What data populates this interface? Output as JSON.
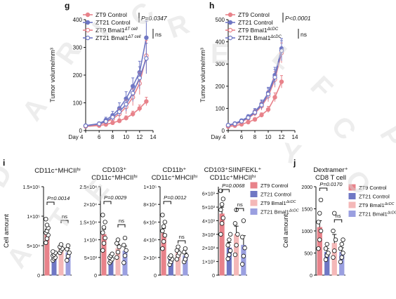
{
  "watermark": "CREATIVE COMMONS WATERMARK",
  "watermark_letters": [
    "D",
    "A",
    "R",
    "I",
    "C",
    "R",
    "A",
    "T",
    "E",
    "L",
    "F",
    "C",
    "O",
    "P",
    "Y",
    "E"
  ],
  "colors": {
    "zt9_control": "#e8828a",
    "zt21_control": "#6f77c4",
    "zt9_ko": "#f4b8b8",
    "zt21_ko": "#9a9fe0",
    "text": "#111111"
  },
  "panels": {
    "g": {
      "letter": "g",
      "ylabel": "Tumor volume/mm³",
      "xlabel_prefix": "Day",
      "legend": [
        {
          "label": "ZT9 Control",
          "color": "#e8828a",
          "fill": true
        },
        {
          "label": "ZT21 Control",
          "color": "#6f77c4",
          "fill": true
        },
        {
          "label": "ZT9 Bmal1",
          "sup": "ΔT cell",
          "color": "#e8828a",
          "fill": false
        },
        {
          "label": "ZT21 Bmal1",
          "sup": "ΔT cell",
          "color": "#6f77c4",
          "fill": false
        }
      ],
      "pvalue": "P=0.0347",
      "ns": "ns"
    },
    "h": {
      "letter": "h",
      "ylabel": "Tumor volume/mm³",
      "xlabel_prefix": "Day",
      "legend": [
        {
          "label": "ZT9 Control",
          "color": "#e8828a",
          "fill": true
        },
        {
          "label": "ZT21 Control",
          "color": "#6f77c4",
          "fill": true
        },
        {
          "label": "ZT9  Bmal1",
          "sup": "ΔcDC",
          "color": "#e8828a",
          "fill": false
        },
        {
          "label": "ZT21 Bmal1",
          "sup": "ΔcDC",
          "color": "#6f77c4",
          "fill": false
        }
      ],
      "pvalue": "P<0.0001",
      "ns": "ns"
    },
    "i": {
      "letter": "i",
      "ylabel": "Cell amount"
    },
    "j": {
      "letter": "j",
      "ylabel": "Cell amount"
    }
  },
  "bar_legend_i": [
    {
      "label": "ZT9  Control",
      "color": "#e8828a"
    },
    {
      "label": "ZT21 Control",
      "color": "#6f77c4"
    },
    {
      "label": "ZT9  Bmal1",
      "sup": "ΔcDC",
      "color": "#f4b8b8"
    },
    {
      "label": "ZT21 Bmal1",
      "sup": "ΔcDC",
      "color": "#9a9fe0"
    }
  ],
  "bar_legend_j": [
    {
      "label": "ZT9  Control",
      "color": "#e8828a"
    },
    {
      "label": "ZT21 Control",
      "color": "#6f77c4"
    },
    {
      "label": "ZT9  Bmal1",
      "sup": "ΔcDC",
      "color": "#f4b8b8"
    },
    {
      "label": "ZT21 Bmal1",
      "sup": "ΔcDC",
      "color": "#9a9fe0"
    }
  ],
  "chart_data": [
    {
      "type": "line",
      "panel": "g",
      "x": [
        4,
        6,
        8,
        10,
        12,
        14
      ],
      "xlim": [
        4,
        14
      ],
      "ylim": [
        0,
        400
      ],
      "yticks": [
        0,
        100,
        200,
        300,
        400
      ],
      "ylabel": "Tumor volume/mm³",
      "xlabel": "Day",
      "series": [
        {
          "name": "ZT9 Control",
          "x": [
            4,
            6,
            7,
            8,
            9,
            10,
            11,
            12,
            13
          ],
          "values": [
            15,
            18,
            22,
            28,
            35,
            45,
            60,
            80,
            105
          ],
          "err": [
            3,
            4,
            5,
            6,
            7,
            8,
            10,
            12,
            15
          ]
        },
        {
          "name": "ZT21 Control",
          "x": [
            4,
            6,
            7,
            8,
            9,
            10,
            11,
            12,
            13
          ],
          "values": [
            18,
            25,
            38,
            55,
            80,
            115,
            160,
            210,
            335
          ],
          "err": [
            4,
            6,
            10,
            14,
            20,
            25,
            30,
            40,
            60
          ]
        },
        {
          "name": "ZT9 Bmal1ΔT cell",
          "x": [
            4,
            6,
            7,
            8,
            9,
            10,
            11,
            12,
            13
          ],
          "values": [
            16,
            22,
            30,
            42,
            60,
            85,
            120,
            170,
            270
          ],
          "err": [
            3,
            5,
            8,
            12,
            18,
            25,
            30,
            40,
            55
          ]
        },
        {
          "name": "ZT21 Bmal1ΔT cell",
          "x": [
            4,
            6,
            7,
            8,
            9,
            10,
            11,
            12,
            13
          ],
          "values": [
            17,
            24,
            33,
            48,
            68,
            95,
            135,
            190,
            260
          ],
          "err": [
            3,
            5,
            8,
            12,
            18,
            25,
            30,
            40,
            55
          ]
        }
      ]
    },
    {
      "type": "line",
      "panel": "h",
      "x": [
        4,
        6,
        8,
        10,
        12,
        14
      ],
      "xlim": [
        4,
        14
      ],
      "ylim": [
        0,
        500
      ],
      "yticks": [
        0,
        100,
        200,
        300,
        400,
        500
      ],
      "ylabel": "Tumor volume/mm³",
      "xlabel": "Day",
      "series": [
        {
          "name": "ZT9 Control",
          "x": [
            4,
            5,
            6,
            7,
            8,
            9,
            10,
            11,
            12
          ],
          "values": [
            18,
            22,
            28,
            38,
            50,
            70,
            95,
            150,
            220
          ],
          "err": [
            3,
            4,
            5,
            6,
            8,
            10,
            14,
            20,
            28
          ]
        },
        {
          "name": "ZT21 Control",
          "x": [
            4,
            5,
            6,
            7,
            8,
            9,
            10,
            11,
            12
          ],
          "values": [
            25,
            32,
            45,
            62,
            85,
            120,
            170,
            250,
            370
          ],
          "err": [
            4,
            5,
            7,
            10,
            14,
            18,
            25,
            35,
            45
          ]
        },
        {
          "name": "ZT9 Bmal1ΔcDC",
          "x": [
            4,
            5,
            6,
            7,
            8,
            9,
            10,
            11,
            12
          ],
          "values": [
            22,
            28,
            40,
            55,
            78,
            110,
            155,
            230,
            350
          ],
          "err": [
            4,
            5,
            7,
            10,
            14,
            18,
            25,
            35,
            45
          ]
        },
        {
          "name": "ZT21 Bmal1ΔcDC",
          "x": [
            4,
            5,
            6,
            7,
            8,
            9,
            10,
            11,
            12
          ],
          "values": [
            24,
            30,
            42,
            58,
            82,
            115,
            165,
            240,
            360
          ],
          "err": [
            4,
            5,
            7,
            10,
            14,
            18,
            25,
            35,
            45
          ]
        }
      ]
    },
    {
      "type": "bar",
      "panel": "i1",
      "title": "CD11c⁺MHCIIʰⁱ",
      "ylim": [
        0,
        150000
      ],
      "yticks": [
        0,
        50000,
        100000,
        150000
      ],
      "yticklabels": [
        "0",
        "5×10⁴",
        "1×10⁵",
        "1.5×10⁵"
      ],
      "categories": [
        "ZT9 Control",
        "ZT21 Control",
        "ZT9 Bmal1ΔcDC",
        "ZT21 Bmal1ΔcDC"
      ],
      "values": [
        70000,
        32000,
        45000,
        38000
      ],
      "err": [
        8000,
        4000,
        6000,
        7000
      ],
      "points": [
        [
          55000,
          62000,
          68000,
          72000,
          75000,
          80000,
          95000,
          85000
        ],
        [
          25000,
          28000,
          30000,
          33000,
          35000,
          38000,
          40000
        ],
        [
          38000,
          42000,
          45000,
          48000,
          52000
        ],
        [
          25000,
          32000,
          38000,
          44000,
          50000
        ]
      ],
      "pvalue": "P=0.0014",
      "ns": "ns"
    },
    {
      "type": "bar",
      "panel": "i2",
      "title": "CD103⁺ CD11c⁺MHCIIʰⁱ",
      "ylim": [
        0,
        25000
      ],
      "yticks": [
        0,
        5000,
        10000,
        15000,
        20000,
        25000
      ],
      "yticklabels": [
        "0",
        "5×10³",
        "1×10⁴",
        "1.5×10⁴",
        "2×10⁴",
        "2.5×10⁴"
      ],
      "categories": [
        "ZT9 Control",
        "ZT21 Control",
        "ZT9 Bmal1ΔcDC",
        "ZT21 Bmal1ΔcDC"
      ],
      "values": [
        11500,
        5000,
        7500,
        6800
      ],
      "err": [
        1500,
        800,
        1200,
        1400
      ],
      "points": [
        [
          7000,
          9000,
          10500,
          12000,
          13500,
          15000,
          17000
        ],
        [
          3500,
          4000,
          4500,
          5000,
          5500,
          6000
        ],
        [
          5000,
          6500,
          8000,
          9000,
          10000
        ],
        [
          3500,
          5500,
          7000,
          8500,
          10500
        ]
      ],
      "pvalue": "P=0.0029",
      "ns": "ns"
    },
    {
      "type": "bar",
      "panel": "i3",
      "title": "CD11b⁺ CD11c⁺MHCIIʰⁱ",
      "ylim": [
        0,
        100000
      ],
      "yticks": [
        0,
        20000,
        40000,
        60000,
        80000,
        100000
      ],
      "yticklabels": [
        "0",
        "2×10⁴",
        "4×10⁴",
        "6×10⁴",
        "8×10⁴",
        "1×10⁵"
      ],
      "categories": [
        "ZT9 Control",
        "ZT21 Control",
        "ZT9 Bmal1ΔcDC",
        "ZT21 Bmal1ΔcDC"
      ],
      "values": [
        47000,
        18000,
        25000,
        22000
      ],
      "err": [
        6000,
        3000,
        3500,
        3000
      ],
      "points": [
        [
          30000,
          38000,
          45000,
          50000,
          55000,
          60000,
          68000
        ],
        [
          12000,
          15000,
          18000,
          20000,
          22000
        ],
        [
          18000,
          22000,
          25000,
          28000,
          32000
        ],
        [
          15000,
          18000,
          22000,
          26000,
          30000
        ]
      ],
      "pvalue": "P=0.0012",
      "ns": "ns"
    },
    {
      "type": "bar",
      "panel": "i4",
      "title": "CD103⁺SIINFEKL⁺ CD11c⁺MHCIIʰⁱ",
      "ylim": [
        0,
        6500
      ],
      "yticks": [
        0,
        1000,
        2000,
        3000,
        4000,
        5000,
        6000
      ],
      "yticklabels": [
        "0",
        "1×10³",
        "2×10³",
        "3×10³",
        "4×10³",
        "5×10³",
        "6×10³"
      ],
      "categories": [
        "ZT9 Control",
        "ZT21 Control",
        "ZT9 Bmal1ΔcDC",
        "ZT21 Bmal1ΔcDC"
      ],
      "values": [
        4500,
        2000,
        3000,
        2200
      ],
      "err": [
        500,
        400,
        600,
        700
      ],
      "points": [
        [
          3000,
          3800,
          4200,
          4800,
          5200,
          5600,
          6200
        ],
        [
          1200,
          1500,
          1800,
          2200,
          2600,
          3000
        ],
        [
          1500,
          2200,
          3000,
          3800,
          4800
        ],
        [
          800,
          1400,
          2000,
          2800,
          4000
        ]
      ],
      "pvalue": "P=0.0068",
      "ns": "ns"
    },
    {
      "type": "bar",
      "panel": "j",
      "title": "Dextramer⁺ CD8 T cell",
      "ylim": [
        0,
        2000
      ],
      "yticks": [
        0,
        500,
        1000,
        1500,
        2000
      ],
      "yticklabels": [
        "0",
        "500",
        "1000",
        "1500",
        "2000"
      ],
      "categories": [
        "ZT9 Control",
        "ZT21 Control",
        "ZT9 Bmal1ΔcDC",
        "ZT21 Bmal1ΔcDC"
      ],
      "values": [
        1080,
        520,
        720,
        520
      ],
      "err": [
        150,
        80,
        200,
        100
      ],
      "points": [
        [
          600,
          800,
          1000,
          1200,
          1400,
          1700
        ],
        [
          350,
          450,
          500,
          600,
          700
        ],
        [
          400,
          550,
          800,
          1000,
          1400
        ],
        [
          300,
          400,
          500,
          600,
          700,
          800
        ]
      ],
      "pvalue": "P=0.0170",
      "ns": "ns"
    }
  ]
}
